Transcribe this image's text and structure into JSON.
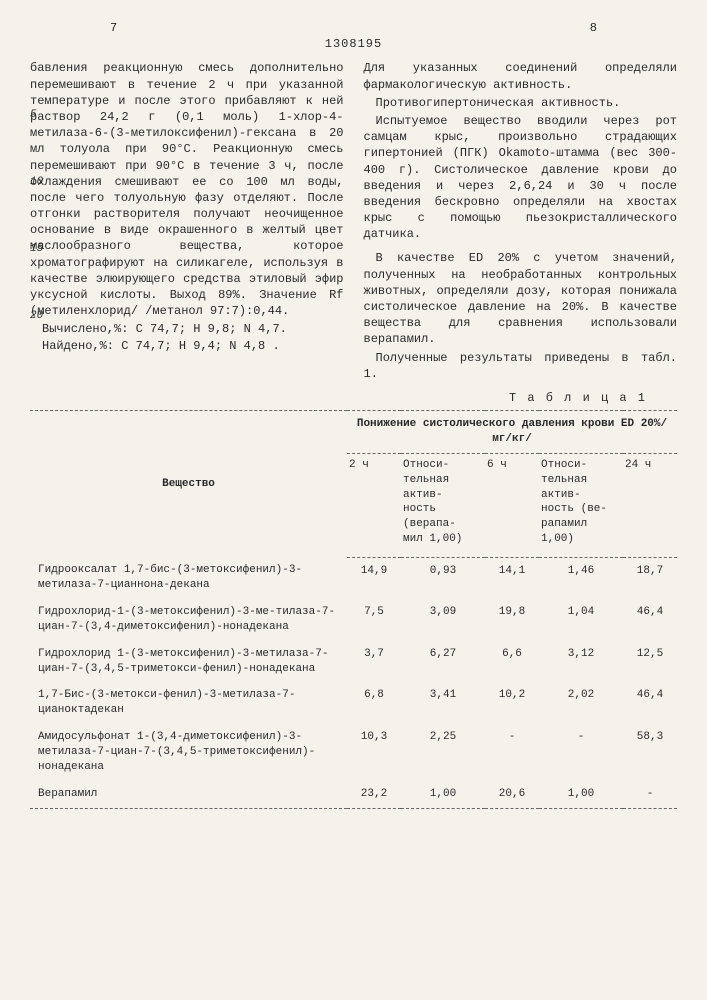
{
  "header": {
    "page_left": "7",
    "doc_id": "1308195",
    "page_right": "8"
  },
  "left_col": {
    "p1": "бавления реакционную смесь дополнительно перемешивают в течение 2 ч при указанной температуре и после этого прибавляют к ней раствор 24,2 г (0,1 моль) 1-хлор-4-метилаза-6-(3-метилоксифенил)-гексана в 20 мл толуола при 90°С. Реакционную смесь перемешивают при 90°С в течение 3 ч, после охлаждения смешивают ее со 100 мл воды, после чего толуольную фазу отделяют. После отгонки растворителя получают неочищенное основание в виде окрашенного в желтый цвет маслообразного вещества, которое хроматографируют на силикагеле, используя в качестве элюирующего средства этиловый эфир уксусной кислоты. Выход 89%. Значение Rf (метиленхлорид/ /метанол 97:7):0,44.",
    "calc": "Вычислено,%: С 74,7; Н 9,8; N 4,7.",
    "found": "Найдено,%: С 74,7; Н 9,4; N 4,8 ."
  },
  "right_col": {
    "p1": "Для указанных соединений определяли фармакологическую активность.",
    "p2": "Противогипертоническая активность.",
    "p3": "Испытуемое вещество вводили через рот самцам крыс, произвольно страдающих гипертонией (ПГК) Оkamoto-штамма (вес 300-400 г). Систолическое давление крови до введения и через 2,6,24 и 30 ч после введения бескровно определяли на хвостах крыс с помощью пьезокристаллического датчика.",
    "p4": "В качестве ED 20% с учетом значений, полученных на необработанных контрольных животных, определяли дозу, которая понижала систолическое давление на 20%. В качестве вещества для сравнения использовали верапамил.",
    "p5": "Полученные результаты приведены в табл. 1."
  },
  "line_nums": [
    "5",
    "10",
    "15",
    "20"
  ],
  "table": {
    "caption": "Т а б л и ц а  1",
    "header_main": "Вещество",
    "header_group": "Понижение систолического давления крови ED 20%/мг/кг/",
    "cols": [
      "2 ч",
      "Относи-\nтельная\nактив-\nность\n(верапа-\nмил 1,00)",
      "6 ч",
      "Относи-\nтельная актив-\nность (ве-\nрапамил 1,00)",
      "24 ч"
    ],
    "rows": [
      {
        "name": "Гидрооксалат 1,7-бис-(3-метоксифенил)-3-метилаза-7-цианнона-декана",
        "v": [
          "14,9",
          "0,93",
          "14,1",
          "1,46",
          "18,7"
        ]
      },
      {
        "name": "Гидрохлорид-1-(3-метоксифенил)-3-ме-тилаза-7-циан-7-(3,4-диметоксифенил)-нонадекана",
        "v": [
          "7,5",
          "3,09",
          "19,8",
          "1,04",
          "46,4"
        ]
      },
      {
        "name": "Гидрохлорид 1-(3-метоксифенил)-3-метилаза-7-циан-7-(3,4,5-триметокси-фенил)-нонадекана",
        "v": [
          "3,7",
          "6,27",
          "6,6",
          "3,12",
          "12,5"
        ]
      },
      {
        "name": "1,7-Бис-(3-метокси-фенил)-3-метилаза-7-цианоктадекан",
        "v": [
          "6,8",
          "3,41",
          "10,2",
          "2,02",
          "46,4"
        ]
      },
      {
        "name": "Амидосульфонат 1-(3,4-диметоксифенил)-3-метилаза-7-циан-7-(3,4,5-триметоксифенил)-нонадекана",
        "v": [
          "10,3",
          "2,25",
          "-",
          "-",
          "58,3"
        ]
      },
      {
        "name": "Верапамил",
        "v": [
          "23,2",
          "1,00",
          "20,6",
          "1,00",
          "-"
        ]
      }
    ]
  }
}
